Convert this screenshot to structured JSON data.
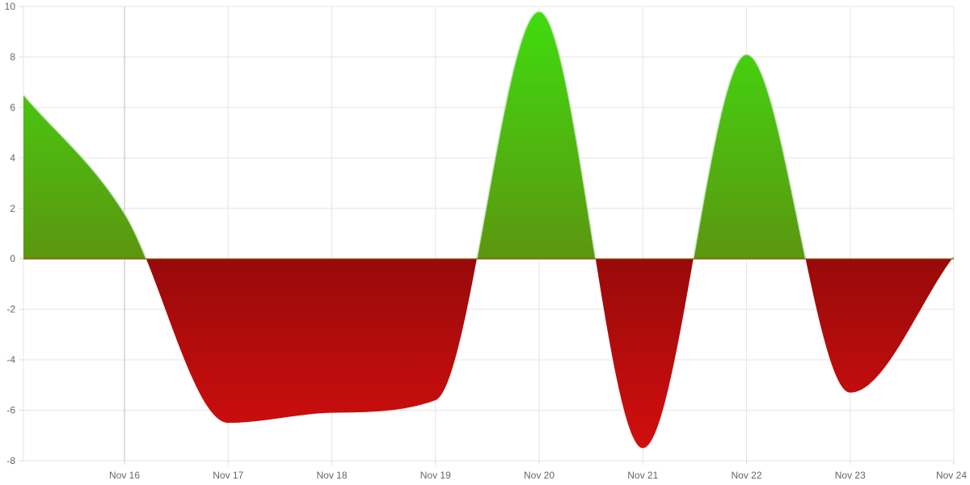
{
  "chart_data": {
    "type": "area",
    "title": "",
    "xlabel": "",
    "ylabel": "",
    "x_ticks": [
      "Nov 16",
      "Nov 17",
      "Nov 18",
      "Nov 19",
      "Nov 20",
      "Nov 21",
      "Nov 22",
      "Nov 23",
      "Nov 24"
    ],
    "y_ticks": [
      10,
      8,
      6,
      4,
      2,
      0,
      -2,
      -4,
      -6,
      -8
    ],
    "ylim": [
      -8,
      10
    ],
    "xlim": [
      "Nov 15 (approx.)",
      "Nov 24"
    ],
    "grid": true,
    "series": [
      {
        "x": [
          "Nov 15 (approx.)",
          "Nov 16",
          "Nov 17",
          "Nov 18",
          "Nov 19",
          "Nov 20",
          "Nov 21",
          "Nov 22",
          "Nov 23",
          "Nov 24"
        ],
        "values": [
          6.5,
          1.8,
          -6.5,
          -6.1,
          -5.6,
          9.8,
          -7.5,
          8.1,
          -5.3,
          0.1
        ]
      }
    ],
    "colors": {
      "positive_top": "#3fdd0f",
      "positive_bottom": "#5c9610",
      "negative_top": "#980a0a",
      "negative_bottom": "#d60e0e",
      "zero_line": "#8a5a10",
      "line": "#c8e6c0"
    }
  }
}
